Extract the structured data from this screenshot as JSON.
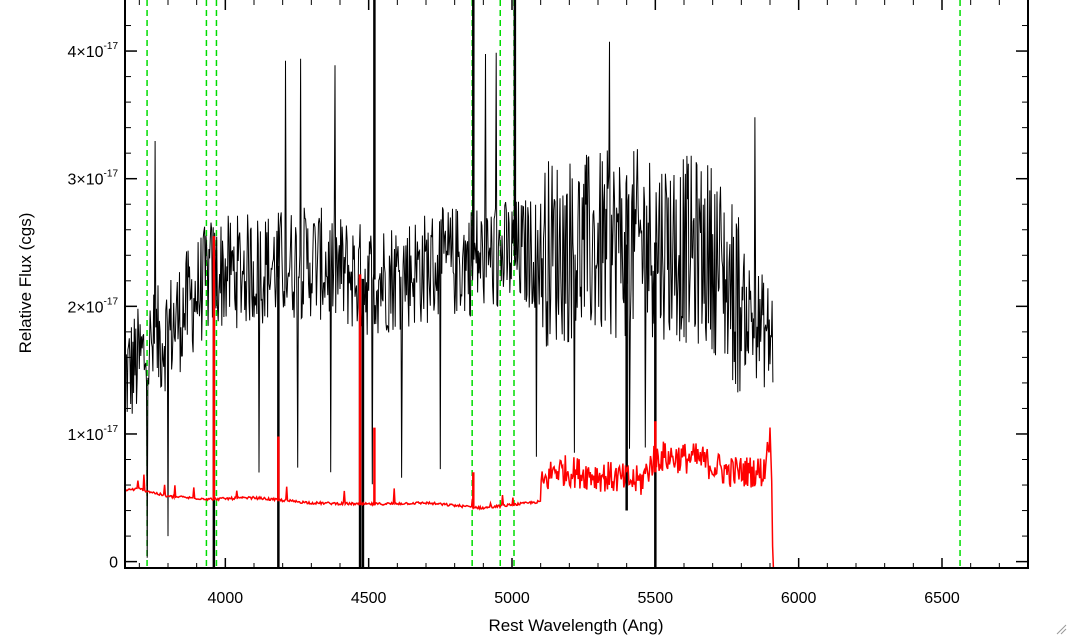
{
  "chart_data": {
    "type": "line",
    "title": "",
    "xlabel": "Rest Wavelength (Ang)",
    "ylabel": "Relative Flux (cgs)",
    "xlim": [
      3650,
      6800
    ],
    "ylim": [
      -5e-19,
      4.4e-17
    ],
    "grid": false,
    "x_ticks": [
      {
        "value": 4000,
        "label": "4000"
      },
      {
        "value": 4500,
        "label": "4500"
      },
      {
        "value": 5000,
        "label": "5000"
      },
      {
        "value": 5500,
        "label": "5500"
      },
      {
        "value": 6000,
        "label": "6000"
      },
      {
        "value": 6500,
        "label": "6500"
      }
    ],
    "y_ticks": [
      {
        "value": 0,
        "mantissa": "0",
        "exponent": ""
      },
      {
        "value": 1e-17,
        "mantissa": "1×10",
        "exponent": "-17"
      },
      {
        "value": 2e-17,
        "mantissa": "2×10",
        "exponent": "-17"
      },
      {
        "value": 3e-17,
        "mantissa": "3×10",
        "exponent": "-17"
      },
      {
        "value": 4e-17,
        "mantissa": "4×10",
        "exponent": "-17"
      }
    ],
    "vertical_lines": {
      "color": "#00dd00",
      "style": "dashed",
      "x": [
        3727,
        3934,
        3969,
        4861,
        4959,
        5007,
        6563
      ]
    },
    "series": [
      {
        "color": "#000000",
        "width": 1,
        "x_range": [
          3650,
          5910
        ],
        "mean_y": [
          [
            3650,
            1.45e-17
          ],
          [
            3800,
            1.8e-17
          ],
          [
            3950,
            2.25e-17
          ],
          [
            4300,
            2.35e-17
          ],
          [
            4500,
            2.2e-17
          ],
          [
            4800,
            2.35e-17
          ],
          [
            5200,
            2.45e-17
          ],
          [
            5500,
            2.5e-17
          ],
          [
            5700,
            2.4e-17
          ],
          [
            5800,
            2e-17
          ],
          [
            5900,
            1.75e-17
          ]
        ],
        "spikes": [
          [
            3960,
            -5e-19
          ],
          [
            4185,
            -5e-19
          ],
          [
            4470,
            -5e-19
          ],
          [
            4480,
            -5e-19
          ],
          [
            4520,
            4.4e-17
          ],
          [
            4865,
            4.4e-17
          ],
          [
            5010,
            4.4e-17
          ],
          [
            5400,
            4e-18
          ],
          [
            5500,
            -5e-19
          ]
        ]
      },
      {
        "color": "#ff0000",
        "width": 1.5,
        "points": [
          [
            3650,
            5.5e-18
          ],
          [
            3700,
            5.6e-18
          ],
          [
            3800,
            5e-18
          ],
          [
            3950,
            4.8e-18
          ],
          [
            4100,
            4.9e-18
          ],
          [
            4300,
            4.5e-18
          ],
          [
            4500,
            4.4e-18
          ],
          [
            4700,
            4.5e-18
          ],
          [
            4900,
            4.1e-18
          ],
          [
            5100,
            4.6e-18
          ],
          [
            5150,
            6e-18
          ],
          [
            5300,
            5.5e-18
          ],
          [
            5450,
            5e-18
          ],
          [
            5500,
            7e-18
          ],
          [
            5650,
            6.8e-18
          ],
          [
            5750,
            5.8e-18
          ],
          [
            5880,
            5.8e-18
          ],
          [
            5895,
            8.5e-18
          ],
          [
            5905,
            8e-18
          ],
          [
            5910,
            -5e-19
          ],
          [
            6800,
            -5e-19
          ]
        ],
        "spikes": [
          [
            3960,
            2.55e-17
          ],
          [
            4185,
            9.8e-18
          ],
          [
            4470,
            2.25e-17
          ],
          [
            4520,
            1.05e-17
          ],
          [
            4865,
            7e-18
          ],
          [
            5500,
            1.1e-17
          ]
        ]
      }
    ]
  }
}
